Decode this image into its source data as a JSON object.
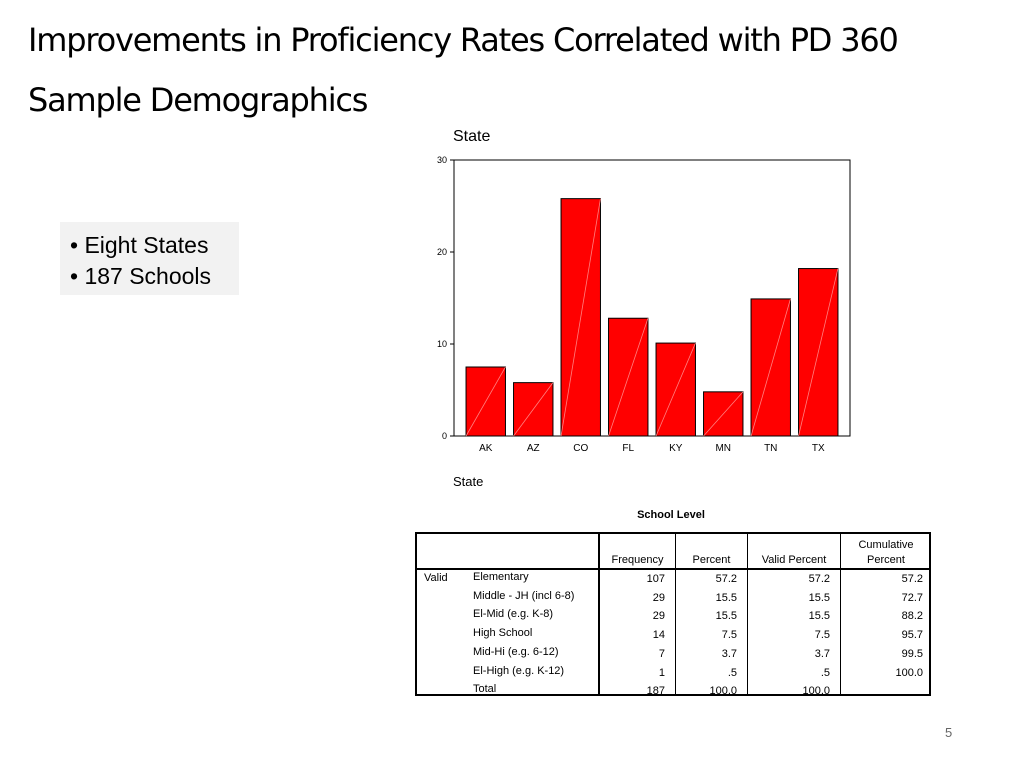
{
  "slide": {
    "title_line1": "Improvements in Proficiency Rates Correlated with PD 360",
    "title_line2": "Sample Demographics",
    "bullets": [
      "• Eight States",
      "• 187 Schools"
    ],
    "page_number": "5"
  },
  "chart_data": {
    "type": "bar",
    "title": "State",
    "xlabel": "State",
    "ylabel": "",
    "categories": [
      "AK",
      "AZ",
      "CO",
      "FL",
      "KY",
      "MN",
      "TN",
      "TX"
    ],
    "values": [
      7.5,
      5.8,
      25.8,
      12.8,
      10.1,
      4.8,
      14.9,
      18.2
    ],
    "ylim": [
      0,
      30
    ],
    "yticks": [
      0,
      10,
      20,
      30
    ],
    "bar_color": "#ff0000"
  },
  "table": {
    "title": "School Level",
    "group_label": "Valid",
    "headers": {
      "frequency": "Frequency",
      "percent": "Percent",
      "valid_percent": "Valid Percent",
      "cumulative_1": "Cumulative",
      "cumulative_2": "Percent"
    },
    "rows": [
      {
        "label": "Elementary",
        "frequency": "107",
        "percent": "57.2",
        "valid_percent": "57.2",
        "cumulative": "57.2"
      },
      {
        "label": "Middle - JH (incl 6-8)",
        "frequency": "29",
        "percent": "15.5",
        "valid_percent": "15.5",
        "cumulative": "72.7"
      },
      {
        "label": "El-Mid (e.g. K-8)",
        "frequency": "29",
        "percent": "15.5",
        "valid_percent": "15.5",
        "cumulative": "88.2"
      },
      {
        "label": "High School",
        "frequency": "14",
        "percent": "7.5",
        "valid_percent": "7.5",
        "cumulative": "95.7"
      },
      {
        "label": "Mid-Hi (e.g. 6-12)",
        "frequency": "7",
        "percent": "3.7",
        "valid_percent": "3.7",
        "cumulative": "99.5"
      },
      {
        "label": "El-High (e.g. K-12)",
        "frequency": "1",
        "percent": ".5",
        "valid_percent": ".5",
        "cumulative": "100.0"
      },
      {
        "label": "Total",
        "frequency": "187",
        "percent": "100.0",
        "valid_percent": "100.0",
        "cumulative": ""
      }
    ]
  }
}
